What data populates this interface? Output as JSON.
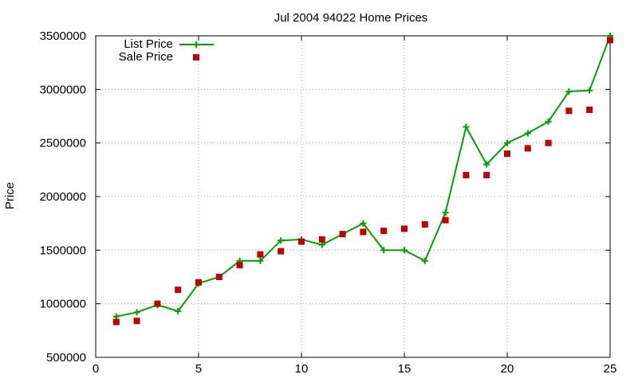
{
  "chart_data": {
    "type": "line",
    "title": "Jul 2004 94022 Home Prices",
    "xlabel": "",
    "ylabel": "Price",
    "xlim": [
      0,
      25
    ],
    "ylim": [
      500000,
      3500000
    ],
    "x_ticks": [
      "0",
      "5",
      "10",
      "15",
      "20",
      "25"
    ],
    "y_ticks": [
      "500000",
      "1000000",
      "1500000",
      "2000000",
      "2500000",
      "3000000",
      "3500000"
    ],
    "grid": true,
    "legend_position": "top-left",
    "x": [
      1,
      2,
      3,
      4,
      5,
      6,
      7,
      8,
      9,
      10,
      11,
      12,
      13,
      14,
      15,
      16,
      17,
      18,
      19,
      20,
      21,
      22,
      23,
      24,
      25
    ],
    "series": [
      {
        "name": "List Price",
        "style": "line+cross",
        "color": "#00a000",
        "values": [
          880000,
          920000,
          990000,
          930000,
          1190000,
          1250000,
          1400000,
          1400000,
          1590000,
          1600000,
          1550000,
          1650000,
          1750000,
          1500000,
          1500000,
          1400000,
          1850000,
          2650000,
          2300000,
          2500000,
          2590000,
          2700000,
          2980000,
          2990000,
          3500000
        ]
      },
      {
        "name": "Sale Price",
        "style": "square",
        "color": "#c00000",
        "values": [
          830000,
          840000,
          1000000,
          1130000,
          1200000,
          1250000,
          1360000,
          1460000,
          1490000,
          1580000,
          1600000,
          1650000,
          1670000,
          1680000,
          1700000,
          1740000,
          1780000,
          2200000,
          2200000,
          2400000,
          2450000,
          2500000,
          2800000,
          2810000,
          3460000
        ]
      }
    ]
  }
}
